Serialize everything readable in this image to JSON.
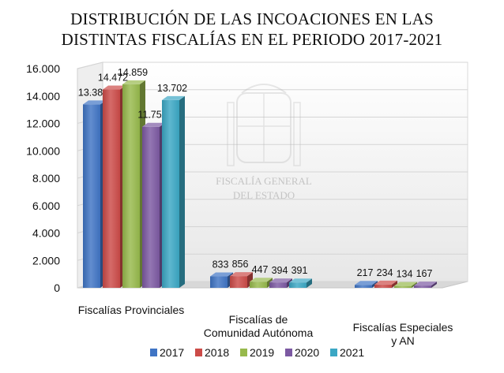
{
  "chart_data": {
    "type": "bar",
    "title": [
      "DISTRIBUCIÓN DE LAS INCOACIONES EN LAS",
      "DISTINTAS FISCALÍAS EN EL PERIODO 2017-2021"
    ],
    "watermark": [
      "FISCALÍA GENERAL",
      "DEL ESTADO"
    ],
    "categories": [
      [
        "Fiscalías Provinciales"
      ],
      [
        "Fiscalías de",
        "Comunidad Autónoma"
      ],
      [
        "Fiscalías Especiales",
        "y AN"
      ]
    ],
    "series": [
      {
        "name": "2017",
        "values": [
          13388,
          833,
          217
        ],
        "labels": [
          "13.388",
          "833",
          "217"
        ],
        "color": "#3f74c4"
      },
      {
        "name": "2018",
        "values": [
          14472,
          856,
          234
        ],
        "labels": [
          "14.472",
          "856",
          "234"
        ],
        "color": "#cc4b48"
      },
      {
        "name": "2019",
        "values": [
          14859,
          447,
          134
        ],
        "labels": [
          "14.859",
          "447",
          "134"
        ],
        "color": "#97b94c"
      },
      {
        "name": "2020",
        "values": [
          11756,
          394,
          167
        ],
        "labels": [
          "11.756",
          "394",
          "167"
        ],
        "color": "#7c59a2"
      },
      {
        "name": "2021",
        "values": [
          13702,
          391,
          null
        ],
        "labels": [
          "13.702",
          "391",
          ""
        ],
        "color": "#3ba7c4"
      }
    ],
    "yticks": [
      "0",
      "2.000",
      "4.000",
      "6.000",
      "8.000",
      "10.000",
      "12.000",
      "14.000",
      "16.000"
    ],
    "ylim": [
      0,
      16000
    ],
    "grid": true,
    "legend": "bottom"
  }
}
